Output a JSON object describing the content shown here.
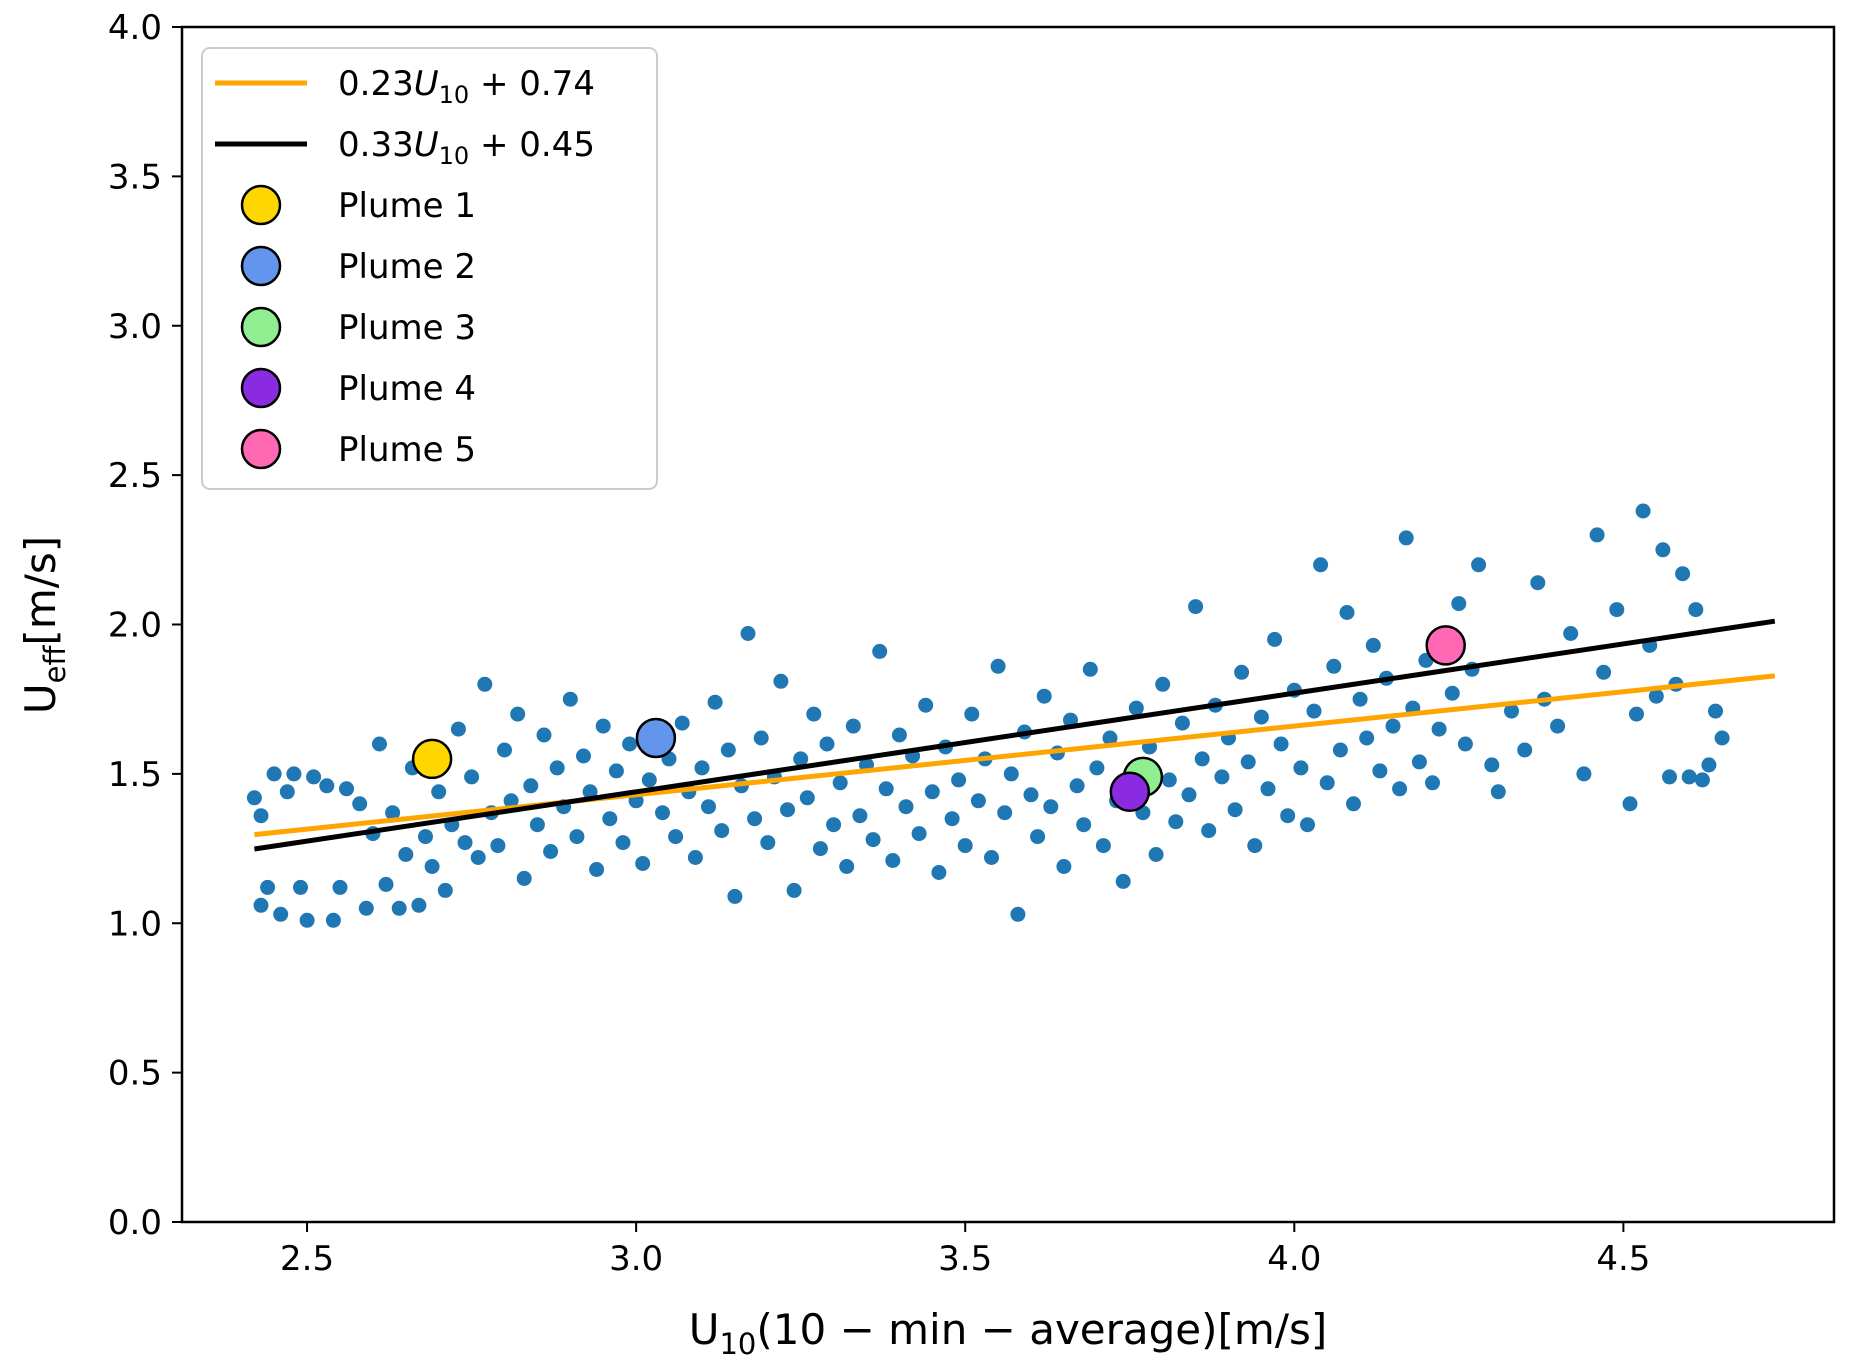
{
  "chart_data": {
    "type": "scatter",
    "title": "",
    "xlabel": {
      "main": "U",
      "sub": "10",
      "rest": "(10 − min − average)[m/s]"
    },
    "ylabel": {
      "main": "U",
      "sub": "eff",
      "rest": "[m/s]"
    },
    "xlim": [
      2.31,
      4.82
    ],
    "ylim": [
      0.0,
      4.0
    ],
    "xticks": [
      {
        "value": 2.5,
        "label": "2.5"
      },
      {
        "value": 3.0,
        "label": "3.0"
      },
      {
        "value": 3.5,
        "label": "3.5"
      },
      {
        "value": 4.0,
        "label": "4.0"
      },
      {
        "value": 4.5,
        "label": "4.5"
      }
    ],
    "yticks": [
      {
        "value": 0.0,
        "label": "0.0"
      },
      {
        "value": 0.5,
        "label": "0.5"
      },
      {
        "value": 1.0,
        "label": "1.0"
      },
      {
        "value": 1.5,
        "label": "1.5"
      },
      {
        "value": 2.0,
        "label": "2.0"
      },
      {
        "value": 2.5,
        "label": "2.5"
      },
      {
        "value": 3.0,
        "label": "3.0"
      },
      {
        "value": 3.5,
        "label": "3.5"
      },
      {
        "value": 4.0,
        "label": "4.0"
      }
    ],
    "grid": false,
    "legend_position": "top-left",
    "scatter_color": "#1f77b4",
    "fit_lines": [
      {
        "label_coef": "0.23",
        "label_var": "U",
        "label_sub": "10",
        "label_rest": " + 0.74",
        "slope": 0.23,
        "intercept": 0.74,
        "color": "#ffa500",
        "x_range": [
          2.42,
          4.73
        ]
      },
      {
        "label_coef": "0.33",
        "label_var": "U",
        "label_sub": "10",
        "label_rest": " + 0.45",
        "slope": 0.33,
        "intercept": 0.45,
        "color": "#000000",
        "x_range": [
          2.42,
          4.73
        ]
      }
    ],
    "plumes": [
      {
        "name": "Plume 1",
        "x": 2.69,
        "y": 1.55,
        "color": "#ffd700"
      },
      {
        "name": "Plume 2",
        "x": 3.03,
        "y": 1.62,
        "color": "#6495ed"
      },
      {
        "name": "Plume 3",
        "x": 3.77,
        "y": 1.49,
        "color": "#90ee90"
      },
      {
        "name": "Plume 4",
        "x": 3.75,
        "y": 1.44,
        "color": "#8a2be2"
      },
      {
        "name": "Plume 5",
        "x": 4.23,
        "y": 1.93,
        "color": "#ff69b4"
      }
    ],
    "observations": [
      [
        2.42,
        1.42
      ],
      [
        2.43,
        1.36
      ],
      [
        2.43,
        1.06
      ],
      [
        2.44,
        1.12
      ],
      [
        2.45,
        1.5
      ],
      [
        2.46,
        1.03
      ],
      [
        2.47,
        1.44
      ],
      [
        2.48,
        1.5
      ],
      [
        2.49,
        1.12
      ],
      [
        2.5,
        1.01
      ],
      [
        2.51,
        1.49
      ],
      [
        2.53,
        1.46
      ],
      [
        2.54,
        1.01
      ],
      [
        2.55,
        1.12
      ],
      [
        2.56,
        1.45
      ],
      [
        2.58,
        1.4
      ],
      [
        2.59,
        1.05
      ],
      [
        2.6,
        1.3
      ],
      [
        2.61,
        1.6
      ],
      [
        2.62,
        1.13
      ],
      [
        2.63,
        1.37
      ],
      [
        2.64,
        1.05
      ],
      [
        2.65,
        1.23
      ],
      [
        2.66,
        1.52
      ],
      [
        2.67,
        1.06
      ],
      [
        2.68,
        1.29
      ],
      [
        2.69,
        1.19
      ],
      [
        2.7,
        1.44
      ],
      [
        2.71,
        1.11
      ],
      [
        2.72,
        1.33
      ],
      [
        2.73,
        1.65
      ],
      [
        2.74,
        1.27
      ],
      [
        2.75,
        1.49
      ],
      [
        2.76,
        1.22
      ],
      [
        2.77,
        1.8
      ],
      [
        2.78,
        1.37
      ],
      [
        2.79,
        1.26
      ],
      [
        2.8,
        1.58
      ],
      [
        2.81,
        1.41
      ],
      [
        2.82,
        1.7
      ],
      [
        2.83,
        1.15
      ],
      [
        2.84,
        1.46
      ],
      [
        2.85,
        1.33
      ],
      [
        2.86,
        1.63
      ],
      [
        2.87,
        1.24
      ],
      [
        2.88,
        1.52
      ],
      [
        2.89,
        1.39
      ],
      [
        2.9,
        1.75
      ],
      [
        2.91,
        1.29
      ],
      [
        2.92,
        1.56
      ],
      [
        2.93,
        1.44
      ],
      [
        2.94,
        1.18
      ],
      [
        2.95,
        1.66
      ],
      [
        2.96,
        1.35
      ],
      [
        2.97,
        1.51
      ],
      [
        2.98,
        1.27
      ],
      [
        2.99,
        1.6
      ],
      [
        3.0,
        1.41
      ],
      [
        3.01,
        1.2
      ],
      [
        3.02,
        1.48
      ],
      [
        3.04,
        1.37
      ],
      [
        3.05,
        1.55
      ],
      [
        3.06,
        1.29
      ],
      [
        3.07,
        1.67
      ],
      [
        3.08,
        1.44
      ],
      [
        3.09,
        1.22
      ],
      [
        3.1,
        1.52
      ],
      [
        3.11,
        1.39
      ],
      [
        3.12,
        1.74
      ],
      [
        3.13,
        1.31
      ],
      [
        3.14,
        1.58
      ],
      [
        3.15,
        1.09
      ],
      [
        3.16,
        1.46
      ],
      [
        3.17,
        1.97
      ],
      [
        3.18,
        1.35
      ],
      [
        3.19,
        1.62
      ],
      [
        3.2,
        1.27
      ],
      [
        3.21,
        1.49
      ],
      [
        3.22,
        1.81
      ],
      [
        3.23,
        1.38
      ],
      [
        3.24,
        1.11
      ],
      [
        3.25,
        1.55
      ],
      [
        3.26,
        1.42
      ],
      [
        3.27,
        1.7
      ],
      [
        3.28,
        1.25
      ],
      [
        3.29,
        1.6
      ],
      [
        3.3,
        1.33
      ],
      [
        3.31,
        1.47
      ],
      [
        3.32,
        1.19
      ],
      [
        3.33,
        1.66
      ],
      [
        3.34,
        1.36
      ],
      [
        3.35,
        1.53
      ],
      [
        3.36,
        1.28
      ],
      [
        3.37,
        1.91
      ],
      [
        3.38,
        1.45
      ],
      [
        3.39,
        1.21
      ],
      [
        3.4,
        1.63
      ],
      [
        3.41,
        1.39
      ],
      [
        3.42,
        1.56
      ],
      [
        3.43,
        1.3
      ],
      [
        3.44,
        1.73
      ],
      [
        3.45,
        1.44
      ],
      [
        3.46,
        1.17
      ],
      [
        3.47,
        1.59
      ],
      [
        3.48,
        1.35
      ],
      [
        3.49,
        1.48
      ],
      [
        3.5,
        1.26
      ],
      [
        3.51,
        1.7
      ],
      [
        3.52,
        1.41
      ],
      [
        3.53,
        1.55
      ],
      [
        3.54,
        1.22
      ],
      [
        3.55,
        1.86
      ],
      [
        3.56,
        1.37
      ],
      [
        3.57,
        1.5
      ],
      [
        3.58,
        1.03
      ],
      [
        3.59,
        1.64
      ],
      [
        3.6,
        1.43
      ],
      [
        3.61,
        1.29
      ],
      [
        3.62,
        1.76
      ],
      [
        3.63,
        1.39
      ],
      [
        3.64,
        1.57
      ],
      [
        3.65,
        1.19
      ],
      [
        3.66,
        1.68
      ],
      [
        3.67,
        1.46
      ],
      [
        3.68,
        1.33
      ],
      [
        3.69,
        1.85
      ],
      [
        3.7,
        1.52
      ],
      [
        3.71,
        1.26
      ],
      [
        3.72,
        1.62
      ],
      [
        3.73,
        1.41
      ],
      [
        3.74,
        1.14
      ],
      [
        3.76,
        1.72
      ],
      [
        3.77,
        1.37
      ],
      [
        3.78,
        1.59
      ],
      [
        3.79,
        1.23
      ],
      [
        3.8,
        1.8
      ],
      [
        3.81,
        1.48
      ],
      [
        3.82,
        1.34
      ],
      [
        3.83,
        1.67
      ],
      [
        3.84,
        1.43
      ],
      [
        3.85,
        2.06
      ],
      [
        3.86,
        1.55
      ],
      [
        3.87,
        1.31
      ],
      [
        3.88,
        1.73
      ],
      [
        3.89,
        1.49
      ],
      [
        3.9,
        1.62
      ],
      [
        3.91,
        1.38
      ],
      [
        3.92,
        1.84
      ],
      [
        3.93,
        1.54
      ],
      [
        3.94,
        1.26
      ],
      [
        3.95,
        1.69
      ],
      [
        3.96,
        1.45
      ],
      [
        3.97,
        1.95
      ],
      [
        3.98,
        1.6
      ],
      [
        3.99,
        1.36
      ],
      [
        4.0,
        1.78
      ],
      [
        4.01,
        1.52
      ],
      [
        4.02,
        1.33
      ],
      [
        4.03,
        1.71
      ],
      [
        4.04,
        2.2
      ],
      [
        4.05,
        1.47
      ],
      [
        4.06,
        1.86
      ],
      [
        4.07,
        1.58
      ],
      [
        4.08,
        2.04
      ],
      [
        4.09,
        1.4
      ],
      [
        4.1,
        1.75
      ],
      [
        4.11,
        1.62
      ],
      [
        4.12,
        1.93
      ],
      [
        4.13,
        1.51
      ],
      [
        4.14,
        1.82
      ],
      [
        4.15,
        1.66
      ],
      [
        4.16,
        1.45
      ],
      [
        4.17,
        2.29
      ],
      [
        4.18,
        1.72
      ],
      [
        4.19,
        1.54
      ],
      [
        4.2,
        1.88
      ],
      [
        4.21,
        1.47
      ],
      [
        4.22,
        1.65
      ],
      [
        4.24,
        1.77
      ],
      [
        4.25,
        2.07
      ],
      [
        4.26,
        1.6
      ],
      [
        4.27,
        1.85
      ],
      [
        4.28,
        2.2
      ],
      [
        4.3,
        1.53
      ],
      [
        4.31,
        1.44
      ],
      [
        4.33,
        1.71
      ],
      [
        4.35,
        1.58
      ],
      [
        4.37,
        2.14
      ],
      [
        4.38,
        1.75
      ],
      [
        4.4,
        1.66
      ],
      [
        4.42,
        1.97
      ],
      [
        4.44,
        1.5
      ],
      [
        4.46,
        2.3
      ],
      [
        4.47,
        1.84
      ],
      [
        4.49,
        2.05
      ],
      [
        4.51,
        1.4
      ],
      [
        4.52,
        1.7
      ],
      [
        4.53,
        2.38
      ],
      [
        4.54,
        1.93
      ],
      [
        4.55,
        1.76
      ],
      [
        4.56,
        2.25
      ],
      [
        4.57,
        1.49
      ],
      [
        4.58,
        1.8
      ],
      [
        4.59,
        2.17
      ],
      [
        4.6,
        1.49
      ],
      [
        4.61,
        2.05
      ],
      [
        4.62,
        1.48
      ],
      [
        4.63,
        1.53
      ],
      [
        4.64,
        1.71
      ],
      [
        4.65,
        1.62
      ]
    ]
  }
}
